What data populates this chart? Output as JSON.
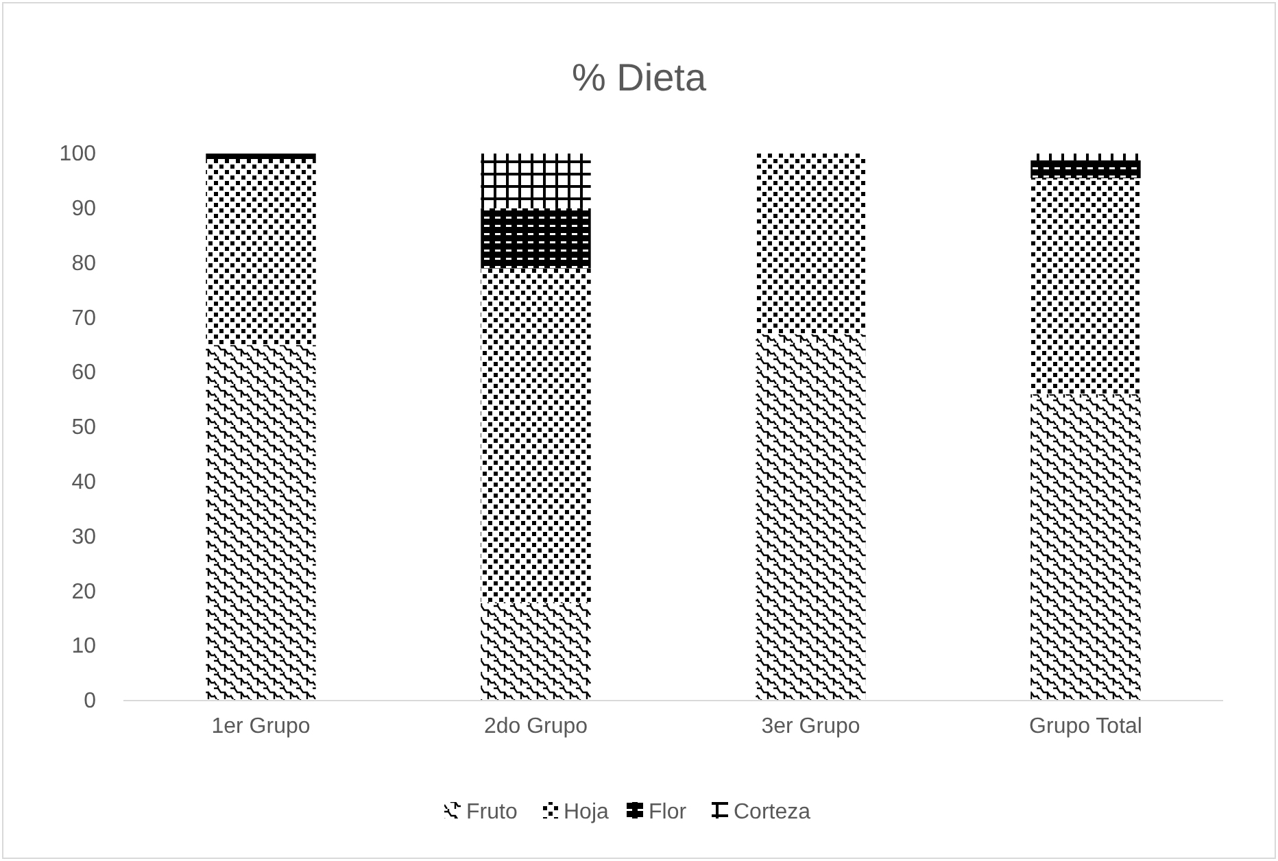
{
  "chart_data": {
    "type": "bar",
    "title": "% Dieta",
    "stacked": true,
    "categories": [
      "1er  Grupo",
      "2do Grupo",
      "3er Grupo",
      "Grupo Total"
    ],
    "series": [
      {
        "name": "Fruto",
        "color": "#000000",
        "values": [
          65,
          18,
          67,
          56
        ]
      },
      {
        "name": "Hoja",
        "color": "#000000",
        "values": [
          34,
          61,
          33,
          39.5
        ]
      },
      {
        "name": "Flor",
        "color": "#000000",
        "values": [
          1,
          11,
          0,
          3
        ]
      },
      {
        "name": "Corteza",
        "color": "#000000",
        "values": [
          0,
          10,
          0,
          1.5
        ]
      }
    ],
    "ylim": [
      0,
      100
    ],
    "yticks": [
      0,
      10,
      20,
      30,
      40,
      50,
      60,
      70,
      80,
      90,
      100
    ],
    "grid": false,
    "legend": "bottom"
  }
}
